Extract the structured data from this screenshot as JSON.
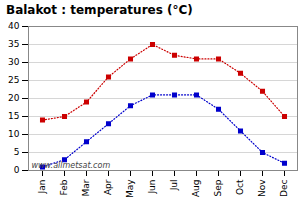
{
  "chart_data": {
    "type": "line",
    "title": "Balakot : temperatures (°C)",
    "categories": [
      "Jan",
      "Feb",
      "Mar",
      "Apr",
      "May",
      "Jun",
      "Jul",
      "Aug",
      "Sep",
      "Oct",
      "Nov",
      "Dec"
    ],
    "series": [
      {
        "color": "#cc0000",
        "values": [
          14,
          15,
          19,
          26,
          31,
          35,
          32,
          31,
          31,
          27,
          22,
          15
        ]
      },
      {
        "color": "#0000cc",
        "values": [
          1,
          3,
          8,
          13,
          18,
          21,
          21,
          21,
          17,
          11,
          5,
          2
        ]
      }
    ],
    "ylim": [
      0,
      40
    ],
    "yticks": [
      0,
      5,
      10,
      15,
      20,
      25,
      30,
      35,
      40
    ],
    "grid": true,
    "marker": "square",
    "line_style": "dotted",
    "annotation": "www.allmetsat.com"
  }
}
